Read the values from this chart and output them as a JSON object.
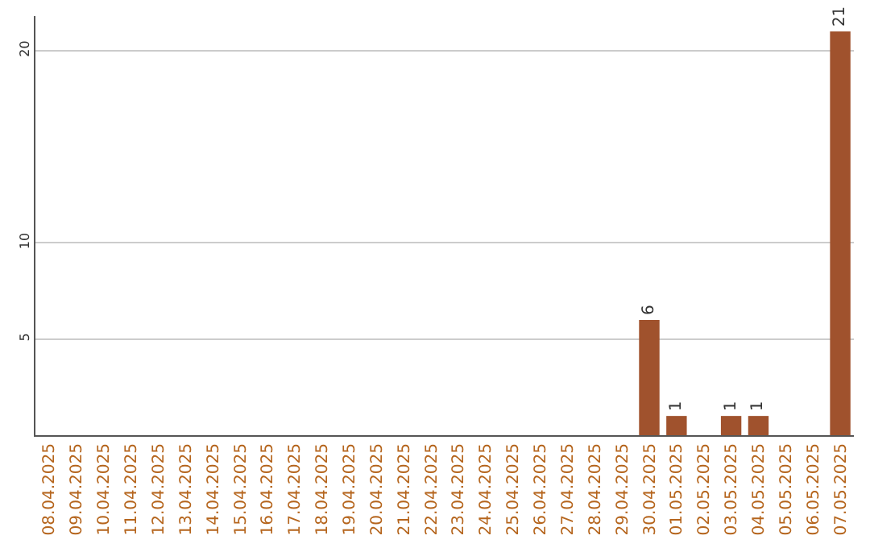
{
  "chart_data": {
    "type": "bar",
    "categories": [
      "08.04.2025",
      "09.04.2025",
      "10.04.2025",
      "11.04.2025",
      "12.04.2025",
      "13.04.2025",
      "14.04.2025",
      "15.04.2025",
      "16.04.2025",
      "17.04.2025",
      "18.04.2025",
      "19.04.2025",
      "20.04.2025",
      "21.04.2025",
      "22.04.2025",
      "23.04.2025",
      "24.04.2025",
      "25.04.2025",
      "26.04.2025",
      "27.04.2025",
      "28.04.2025",
      "29.04.2025",
      "30.04.2025",
      "01.05.2025",
      "02.05.2025",
      "03.05.2025",
      "04.05.2025",
      "05.05.2025",
      "06.05.2025",
      "07.05.2025"
    ],
    "values": [
      0,
      0,
      0,
      0,
      0,
      0,
      0,
      0,
      0,
      0,
      0,
      0,
      0,
      0,
      0,
      0,
      0,
      0,
      0,
      0,
      0,
      0,
      6,
      1,
      0,
      1,
      1,
      0,
      0,
      21
    ],
    "value_labels": [
      null,
      null,
      null,
      null,
      null,
      null,
      null,
      null,
      null,
      null,
      null,
      null,
      null,
      null,
      null,
      null,
      null,
      null,
      null,
      null,
      null,
      null,
      "6",
      "1",
      null,
      "1",
      "1",
      null,
      null,
      "21"
    ],
    "color": "#a0522d",
    "ylim": [
      0,
      21.8
    ],
    "yticks": [
      5,
      10,
      20
    ],
    "grid": "y"
  }
}
